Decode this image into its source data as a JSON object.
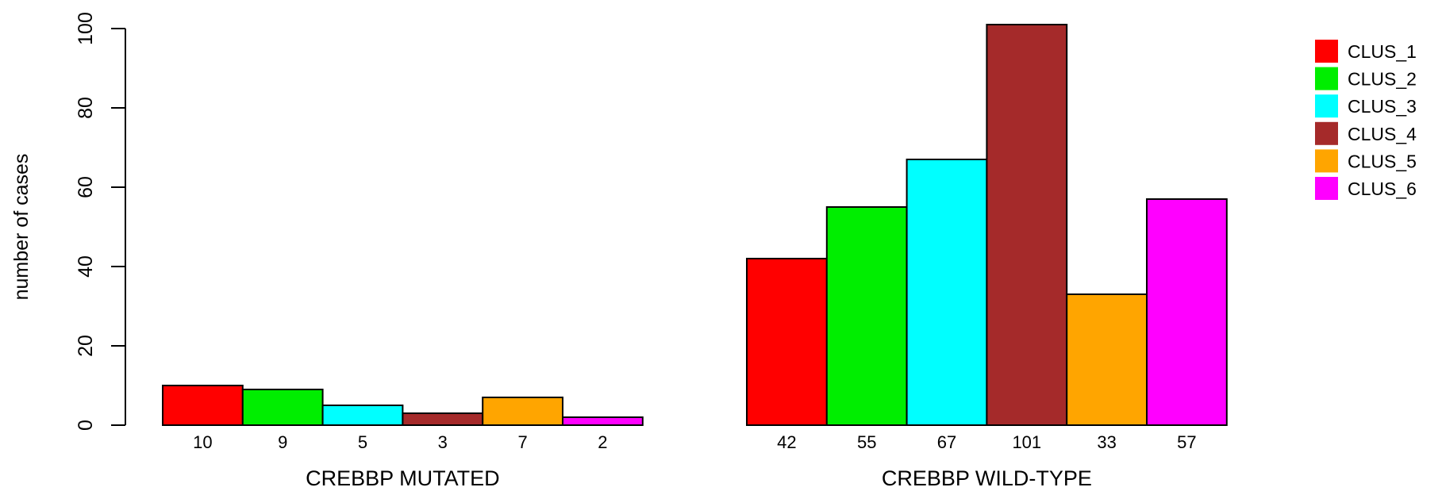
{
  "chart_data": {
    "type": "bar",
    "ylabel": "number of cases",
    "ylim": [
      0,
      100
    ],
    "yticks": [
      0,
      20,
      40,
      60,
      80,
      100
    ],
    "grid": false,
    "legend_position": "right",
    "series_names": [
      "CLUS_1",
      "CLUS_2",
      "CLUS_3",
      "CLUS_4",
      "CLUS_5",
      "CLUS_6"
    ],
    "colors": [
      "#ff0000",
      "#00ee00",
      "#00ffff",
      "#a52a2a",
      "#ffa500",
      "#ff00ff"
    ],
    "groups": [
      {
        "label": "CREBBP MUTATED",
        "values": [
          10,
          9,
          5,
          3,
          7,
          2
        ],
        "value_labels": [
          "10",
          "9",
          "5",
          "3",
          "7",
          "2"
        ]
      },
      {
        "label": "CREBBP WILD-TYPE",
        "values": [
          42,
          55,
          67,
          101,
          33,
          57
        ],
        "value_labels": [
          "42",
          "55",
          "67",
          "101",
          "33",
          "57"
        ]
      }
    ]
  }
}
